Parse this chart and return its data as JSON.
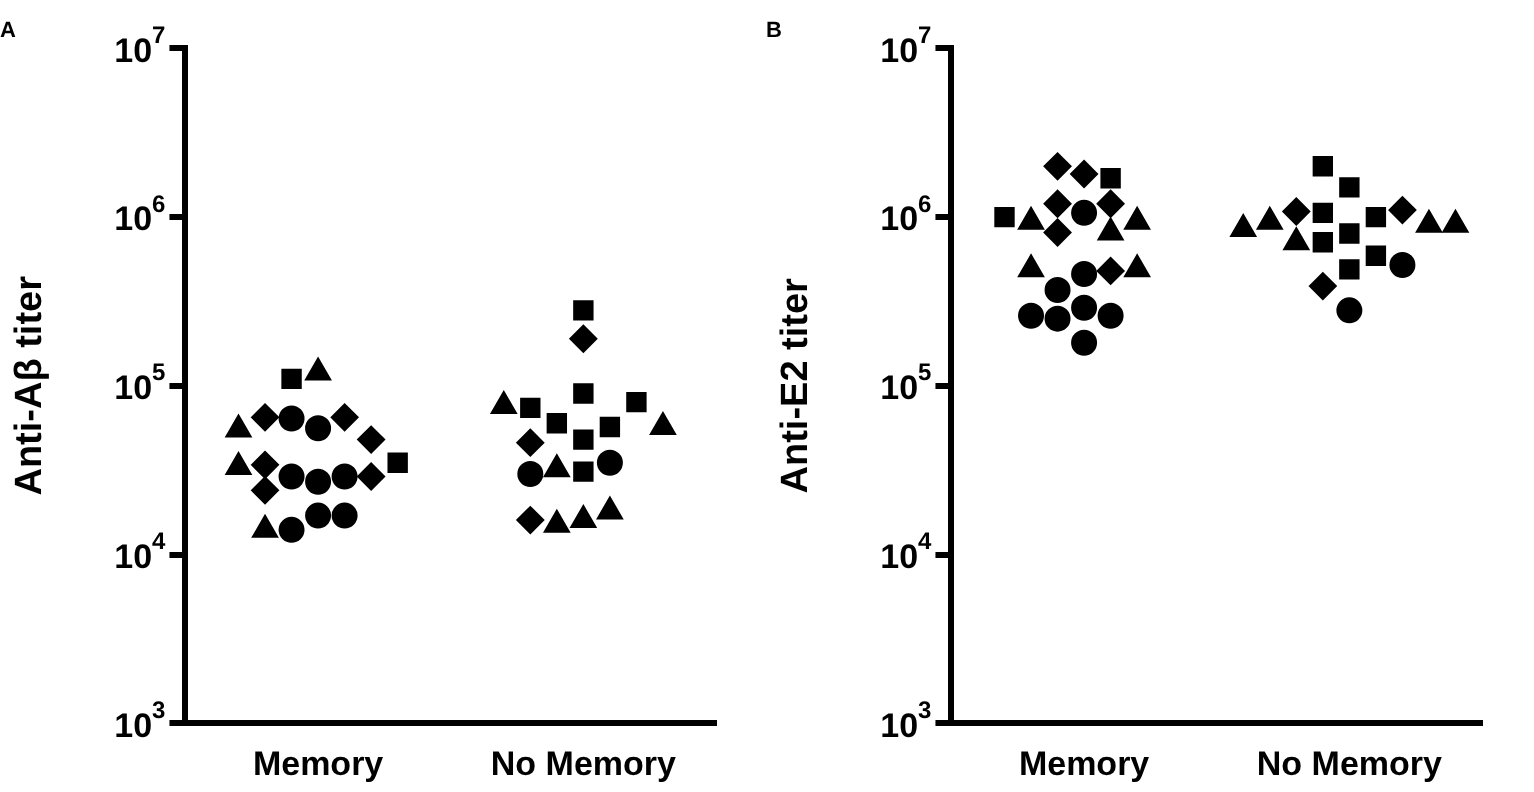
{
  "chart_data": [
    {
      "type": "scatter",
      "title": "A",
      "ylabel": "Anti-Aβ titer",
      "categories": [
        "Memory",
        "No Memory"
      ],
      "log": "y",
      "grid": false,
      "legend": false,
      "ylim": [
        1000,
        10000000
      ],
      "yticks": [
        {
          "value": 1000,
          "label": "10$^{3}$"
        },
        {
          "value": 10000,
          "label": "10$^{4}$"
        },
        {
          "value": 100000,
          "label": "10$^{5}$"
        },
        {
          "value": 1000000,
          "label": "10$^{6}$"
        },
        {
          "value": 10000000,
          "label": "10$^{7}$"
        }
      ],
      "series": [
        {
          "color": "#000000",
          "marker": "circle",
          "x": [
            "Memory",
            "Memory",
            "Memory",
            "Memory",
            "Memory",
            "Memory",
            "Memory",
            "Memory"
          ],
          "values": [
            17000,
            56000,
            14000,
            27000,
            29000,
            64000,
            29000,
            17000
          ]
        },
        {
          "color": "#000000",
          "marker": "diamond",
          "x": [
            "Memory",
            "Memory",
            "Memory",
            "Memory",
            "Memory",
            "Memory"
          ],
          "values": [
            65000,
            34000,
            29000,
            48000,
            24000,
            65000
          ]
        },
        {
          "color": "#000000",
          "marker": "triangle",
          "x": [
            "Memory",
            "Memory",
            "Memory",
            "Memory"
          ],
          "values": [
            120000,
            55000,
            33000,
            14000
          ]
        },
        {
          "color": "#000000",
          "marker": "square",
          "x": [
            "Memory",
            "Memory"
          ],
          "values": [
            35000,
            110000
          ]
        },
        {
          "color": "#000000",
          "marker": "square",
          "x": [
            "No Memory",
            "No Memory",
            "No Memory",
            "No Memory",
            "No Memory",
            "No Memory",
            "No Memory",
            "No Memory"
          ],
          "values": [
            48000,
            90000,
            280000,
            31000,
            60000,
            57000,
            74000,
            80000
          ]
        },
        {
          "color": "#000000",
          "marker": "triangle",
          "x": [
            "No Memory",
            "No Memory",
            "No Memory",
            "No Memory",
            "No Memory",
            "No Memory"
          ],
          "values": [
            16000,
            76000,
            15000,
            57000,
            32000,
            18000
          ]
        },
        {
          "color": "#000000",
          "marker": "circle",
          "x": [
            "No Memory",
            "No Memory"
          ],
          "values": [
            35000,
            30000
          ]
        },
        {
          "color": "#000000",
          "marker": "diamond",
          "x": [
            "No Memory",
            "No Memory",
            "No Memory"
          ],
          "values": [
            190000,
            16000,
            46000
          ]
        }
      ]
    },
    {
      "type": "scatter",
      "title": "B",
      "ylabel": "Anti-E2 titer",
      "categories": [
        "Memory",
        "No Memory"
      ],
      "log": "y",
      "grid": false,
      "legend": false,
      "ylim": [
        1000,
        10000000
      ],
      "yticks": [
        {
          "value": 1000,
          "label": "10$^{3}$"
        },
        {
          "value": 10000,
          "label": "10$^{4}$"
        },
        {
          "value": 100000,
          "label": "10$^{5}$"
        },
        {
          "value": 1000000,
          "label": "10$^{6}$"
        },
        {
          "value": 10000000,
          "label": "10$^{7}$"
        }
      ],
      "series": [
        {
          "color": "#000000",
          "marker": "circle",
          "x": [
            "Memory",
            "Memory",
            "Memory",
            "Memory",
            "Memory",
            "Memory",
            "Memory",
            "Memory"
          ],
          "values": [
            290000,
            460000,
            250000,
            180000,
            370000,
            260000,
            1060000,
            260000
          ]
        },
        {
          "color": "#000000",
          "marker": "diamond",
          "x": [
            "Memory",
            "Memory",
            "Memory",
            "Memory",
            "Memory",
            "Memory"
          ],
          "values": [
            1800000,
            1200000,
            810000,
            2000000,
            1200000,
            480000
          ]
        },
        {
          "color": "#000000",
          "marker": "triangle",
          "x": [
            "Memory",
            "Memory",
            "Memory",
            "Memory",
            "Memory"
          ],
          "values": [
            490000,
            940000,
            810000,
            940000,
            490000
          ]
        },
        {
          "color": "#000000",
          "marker": "square",
          "x": [
            "Memory",
            "Memory"
          ],
          "values": [
            1000000,
            1700000
          ]
        },
        {
          "color": "#000000",
          "marker": "square",
          "x": [
            "No Memory",
            "No Memory",
            "No Memory",
            "No Memory",
            "No Memory",
            "No Memory",
            "No Memory",
            "No Memory"
          ],
          "values": [
            800000,
            1500000,
            710000,
            2000000,
            490000,
            1000000,
            590000,
            1060000
          ]
        },
        {
          "color": "#000000",
          "marker": "diamond",
          "x": [
            "No Memory",
            "No Memory",
            "No Memory"
          ],
          "values": [
            1080000,
            390000,
            1100000
          ]
        },
        {
          "color": "#000000",
          "marker": "triangle",
          "x": [
            "No Memory",
            "No Memory",
            "No Memory",
            "No Memory",
            "No Memory"
          ],
          "values": [
            940000,
            900000,
            850000,
            900000,
            710000
          ]
        },
        {
          "color": "#000000",
          "marker": "circle",
          "x": [
            "No Memory",
            "No Memory"
          ],
          "values": [
            520000,
            280000
          ]
        }
      ]
    }
  ]
}
